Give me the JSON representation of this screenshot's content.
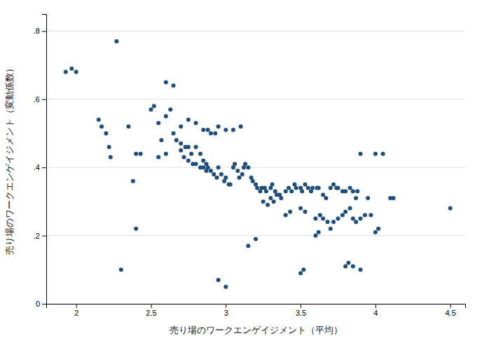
{
  "chart_data": {
    "type": "scatter",
    "xlabel": "売り場のワークエンゲイジメント（平均）",
    "ylabel": "売り場のワークエンゲイジメント（変動係数）",
    "xlim": [
      1.8,
      4.6
    ],
    "ylim": [
      0,
      0.85
    ],
    "xticks": [
      2,
      2.5,
      3,
      3.5,
      4,
      4.5
    ],
    "yticks": [
      0,
      {
        "value": 0.2,
        "label": ".2"
      },
      {
        "value": 0.4,
        "label": ".4"
      },
      {
        "value": 0.6,
        "label": ".6"
      },
      {
        "value": 0.8,
        "label": ".8"
      }
    ],
    "grid": "y",
    "color": "#1f4e79",
    "x": [
      1.93,
      1.97,
      2.0,
      2.27,
      2.15,
      2.17,
      2.2,
      2.22,
      2.23,
      2.35,
      2.4,
      2.43,
      2.38,
      2.5,
      2.52,
      2.55,
      2.57,
      2.6,
      2.63,
      2.65,
      2.67,
      2.7,
      2.73,
      2.75,
      2.77,
      2.8,
      2.83,
      2.85,
      2.87,
      2.88,
      2.9,
      2.92,
      2.94,
      2.95,
      2.97,
      2.99,
      3.0,
      3.02,
      3.03,
      3.05,
      3.06,
      3.08,
      3.09,
      3.11,
      3.12,
      3.13,
      3.15,
      3.17,
      3.18,
      3.2,
      3.21,
      3.23,
      3.24,
      3.26,
      3.27,
      3.3,
      3.31,
      3.33,
      3.34,
      3.36,
      3.37,
      3.4,
      3.42,
      3.44,
      3.46,
      3.47,
      3.5,
      3.51,
      3.53,
      3.55,
      3.57,
      3.58,
      3.61,
      3.62,
      3.65,
      3.67,
      3.7,
      3.72,
      3.74,
      3.75,
      3.78,
      3.8,
      3.83,
      3.85,
      3.87,
      3.88,
      3.9,
      3.95,
      3.97,
      4.0,
      4.05,
      4.1,
      4.12,
      4.5,
      2.6,
      2.65,
      2.55,
      2.6,
      2.7,
      2.72,
      2.75,
      2.78,
      2.8,
      2.83,
      2.85,
      2.87,
      2.7,
      2.75,
      2.8,
      2.85,
      2.88,
      2.9,
      2.93,
      2.95,
      3.0,
      3.05,
      3.1,
      3.25,
      3.28,
      3.3,
      3.32,
      3.4,
      3.43,
      3.5,
      3.53,
      3.6,
      3.63,
      3.65,
      3.68,
      3.7,
      3.72,
      3.75,
      3.78,
      3.8,
      3.83,
      3.85,
      3.87,
      3.9,
      3.93,
      2.3,
      2.4,
      2.95,
      3.0,
      3.15,
      3.2,
      3.5,
      3.52,
      3.6,
      3.62,
      3.8,
      3.82,
      3.85,
      3.9,
      4.0,
      4.02
    ],
    "values": [
      0.68,
      0.69,
      0.68,
      0.77,
      0.54,
      0.52,
      0.5,
      0.46,
      0.43,
      0.52,
      0.44,
      0.44,
      0.36,
      0.57,
      0.58,
      0.53,
      0.48,
      0.55,
      0.57,
      0.5,
      0.48,
      0.47,
      0.46,
      0.46,
      0.44,
      0.46,
      0.44,
      0.42,
      0.41,
      0.4,
      0.39,
      0.38,
      0.37,
      0.4,
      0.38,
      0.36,
      0.37,
      0.35,
      0.35,
      0.4,
      0.41,
      0.39,
      0.37,
      0.38,
      0.4,
      0.41,
      0.4,
      0.37,
      0.36,
      0.35,
      0.34,
      0.33,
      0.34,
      0.34,
      0.33,
      0.34,
      0.35,
      0.33,
      0.32,
      0.32,
      0.31,
      0.33,
      0.34,
      0.33,
      0.35,
      0.34,
      0.34,
      0.33,
      0.35,
      0.34,
      0.33,
      0.34,
      0.34,
      0.34,
      0.32,
      0.31,
      0.34,
      0.35,
      0.34,
      0.34,
      0.33,
      0.33,
      0.34,
      0.33,
      0.31,
      0.33,
      0.44,
      0.31,
      0.26,
      0.44,
      0.44,
      0.31,
      0.31,
      0.28,
      0.65,
      0.64,
      0.43,
      0.44,
      0.45,
      0.43,
      0.42,
      0.41,
      0.41,
      0.4,
      0.4,
      0.39,
      0.52,
      0.54,
      0.53,
      0.51,
      0.51,
      0.5,
      0.5,
      0.52,
      0.51,
      0.51,
      0.52,
      0.3,
      0.29,
      0.31,
      0.3,
      0.26,
      0.27,
      0.28,
      0.27,
      0.25,
      0.26,
      0.25,
      0.24,
      0.22,
      0.24,
      0.25,
      0.26,
      0.27,
      0.28,
      0.25,
      0.24,
      0.25,
      0.26,
      0.1,
      0.22,
      0.07,
      0.05,
      0.17,
      0.19,
      0.09,
      0.1,
      0.2,
      0.21,
      0.11,
      0.12,
      0.11,
      0.1,
      0.21,
      0.22
    ]
  }
}
